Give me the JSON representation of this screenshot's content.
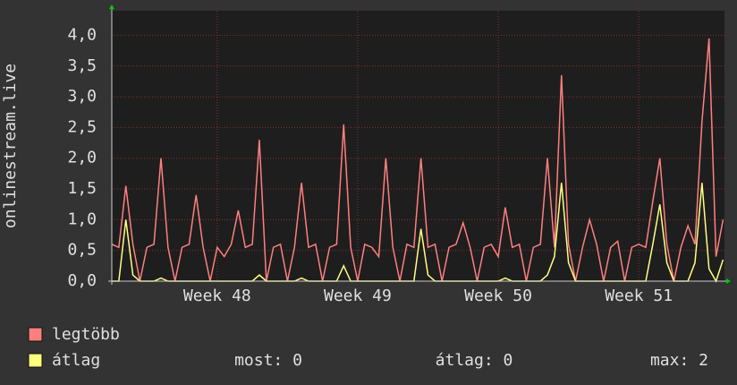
{
  "chart_data": {
    "type": "line",
    "ylabel": "onlinestream.live",
    "x": [
      47.25,
      47.3,
      47.35,
      47.4,
      47.45,
      47.5,
      47.55,
      47.6,
      47.65,
      47.7,
      47.75,
      47.8,
      47.85,
      47.9,
      47.95,
      48.0,
      48.05,
      48.1,
      48.15,
      48.2,
      48.25,
      48.3,
      48.35,
      48.4,
      48.45,
      48.5,
      48.55,
      48.6,
      48.65,
      48.7,
      48.75,
      48.8,
      48.85,
      48.9,
      48.95,
      49.0,
      49.05,
      49.1,
      49.15,
      49.2,
      49.25,
      49.3,
      49.35,
      49.4,
      49.45,
      49.5,
      49.55,
      49.6,
      49.65,
      49.7,
      49.75,
      49.8,
      49.85,
      49.9,
      49.95,
      50.0,
      50.05,
      50.1,
      50.15,
      50.2,
      50.25,
      50.3,
      50.35,
      50.4,
      50.45,
      50.5,
      50.55,
      50.6,
      50.65,
      50.7,
      50.75,
      50.8,
      50.85,
      50.9,
      50.95,
      51.0,
      51.05,
      51.1,
      51.15,
      51.2,
      51.25,
      51.3,
      51.35,
      51.4,
      51.45,
      51.5,
      51.55,
      51.6
    ],
    "series": [
      {
        "name": "legtöbb",
        "color": "#ff7f7f",
        "values": [
          0.6,
          0.55,
          1.55,
          0.6,
          0,
          0.55,
          0.6,
          2.0,
          0.55,
          0,
          0.55,
          0.6,
          1.4,
          0.55,
          0,
          0.55,
          0.4,
          0.6,
          1.15,
          0.55,
          0.6,
          2.3,
          0,
          0.55,
          0.6,
          0,
          0.55,
          1.6,
          0.55,
          0.6,
          0,
          0.55,
          0.6,
          2.55,
          0.55,
          0,
          0.6,
          0.55,
          0.4,
          2.0,
          0.55,
          0,
          0.6,
          0.55,
          2.0,
          0.55,
          0.6,
          0,
          0.55,
          0.6,
          0.95,
          0.55,
          0,
          0.55,
          0.6,
          0.4,
          1.2,
          0.55,
          0.6,
          0,
          0.55,
          0.6,
          2.0,
          0.55,
          3.35,
          0.6,
          0,
          0.55,
          1.0,
          0.6,
          0,
          0.55,
          0.65,
          0,
          0.55,
          0.6,
          0.55,
          1.3,
          2.0,
          0.6,
          0,
          0.55,
          0.9,
          0.6,
          2.6,
          3.95,
          0.4,
          1.0
        ]
      },
      {
        "name": "átlag",
        "color": "#ffff80",
        "values": [
          0,
          0,
          1.0,
          0.1,
          0,
          0,
          0,
          0.05,
          0,
          0,
          0,
          0,
          0,
          0,
          0,
          0,
          0,
          0,
          0,
          0,
          0,
          0.1,
          0,
          0,
          0,
          0,
          0,
          0.05,
          0,
          0,
          0,
          0,
          0,
          0.25,
          0,
          0,
          0,
          0,
          0,
          0,
          0,
          0,
          0,
          0,
          0.85,
          0.1,
          0,
          0,
          0,
          0,
          0,
          0,
          0,
          0,
          0,
          0,
          0.05,
          0,
          0,
          0,
          0,
          0,
          0.1,
          0.4,
          1.6,
          0.3,
          0,
          0,
          0,
          0,
          0,
          0,
          0,
          0,
          0,
          0,
          0,
          0.6,
          1.25,
          0.3,
          0,
          0,
          0,
          0.3,
          1.6,
          0.2,
          0,
          0.35
        ]
      }
    ],
    "xlim": [
      47.25,
      51.61
    ],
    "xticks": [
      {
        "value": 48,
        "label": "Week 48"
      },
      {
        "value": 49,
        "label": "Week 49"
      },
      {
        "value": 50,
        "label": "Week 50"
      },
      {
        "value": 51,
        "label": "Week 51"
      }
    ],
    "ylim": [
      0,
      4.4
    ],
    "yticks": [
      {
        "value": 0,
        "label": "0,0"
      },
      {
        "value": 0.5,
        "label": "0,5"
      },
      {
        "value": 1,
        "label": "1,0"
      },
      {
        "value": 1.5,
        "label": "1,5"
      },
      {
        "value": 2,
        "label": "2,0"
      },
      {
        "value": 2.5,
        "label": "2,5"
      },
      {
        "value": 3,
        "label": "3,0"
      },
      {
        "value": 3.5,
        "label": "3,5"
      },
      {
        "value": 4,
        "label": "4,0"
      }
    ],
    "grid": true,
    "stats": [
      "most: 0",
      "átlag: 0",
      "max: 2"
    ]
  }
}
